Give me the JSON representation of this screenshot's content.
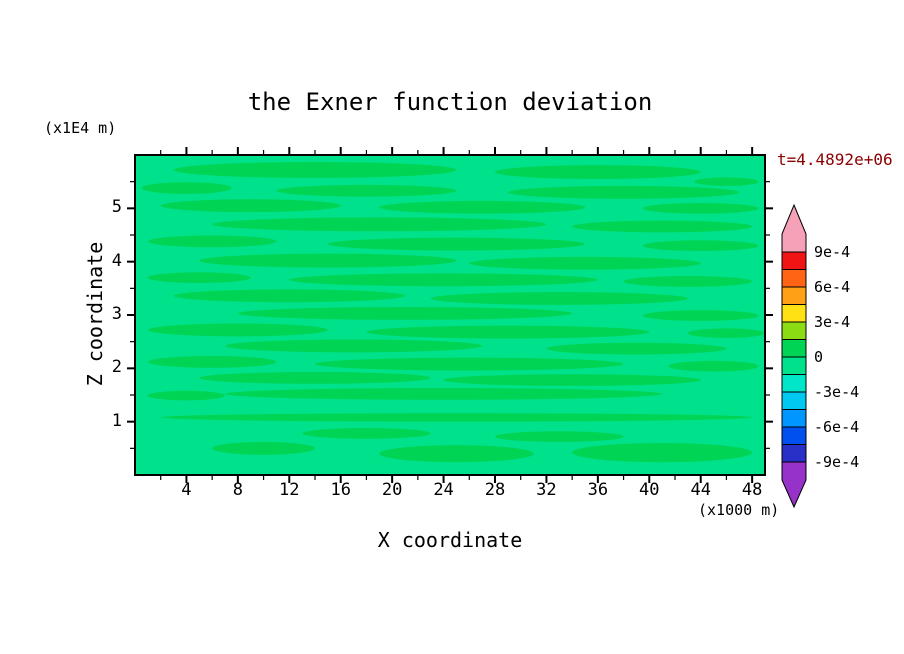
{
  "chart_data": {
    "type": "heatmap",
    "title": "the Exner function deviation",
    "annotation": "t=4.4892e+06",
    "annotation_color": "#8b0000",
    "xlabel": "X coordinate",
    "xunit": "(x1000 m)",
    "ylabel": "Z coordinate",
    "yunit": "(x1E4 m)",
    "xlim": [
      0,
      49
    ],
    "ylim": [
      0,
      6
    ],
    "xticks_major": [
      4,
      8,
      12,
      16,
      20,
      24,
      28,
      32,
      36,
      40,
      44,
      48
    ],
    "xticks_minor": [
      2,
      6,
      10,
      14,
      18,
      22,
      26,
      30,
      34,
      38,
      42,
      46
    ],
    "yticks_major": [
      1,
      2,
      3,
      4,
      5
    ],
    "yticks_minor": [
      0.5,
      1.5,
      2.5,
      3.5,
      4.5,
      5.5
    ],
    "frame_color": "#000000",
    "colorbar": {
      "labels": [
        "9e-4",
        "6e-4",
        "3e-4",
        "0",
        "-3e-4",
        "-6e-4",
        "-9e-4"
      ],
      "box_colors_top_to_bottom": [
        "#f01414",
        "#ff6414",
        "#ffa114",
        "#ffe114",
        "#8cdc14",
        "#00d455",
        "#00e18b",
        "#00e6c8",
        "#00c8f0",
        "#0096ff",
        "#0050f0",
        "#2830c8"
      ],
      "above_range_color": "#f5a2b8",
      "below_range_color": "#9632c8"
    },
    "field": {
      "background_color": "#00e18b",
      "streak_color": "#00d455",
      "streaks": [
        [
          14,
          5.72,
          11,
          0.15
        ],
        [
          36,
          5.68,
          8,
          0.13
        ],
        [
          46,
          5.5,
          2.5,
          0.08
        ],
        [
          4,
          5.38,
          3.5,
          0.11
        ],
        [
          18,
          5.33,
          7,
          0.11
        ],
        [
          38,
          5.3,
          9,
          0.12
        ],
        [
          9,
          5.05,
          7,
          0.12
        ],
        [
          27,
          5.02,
          8,
          0.12
        ],
        [
          44,
          5.0,
          4.5,
          0.1
        ],
        [
          19,
          4.7,
          13,
          0.13
        ],
        [
          41,
          4.66,
          7,
          0.11
        ],
        [
          6,
          4.38,
          5,
          0.11
        ],
        [
          25,
          4.33,
          10,
          0.12
        ],
        [
          44,
          4.3,
          4.5,
          0.1
        ],
        [
          15,
          4.02,
          10,
          0.13
        ],
        [
          35,
          3.97,
          9,
          0.12
        ],
        [
          5,
          3.7,
          4,
          0.1
        ],
        [
          24,
          3.66,
          12,
          0.12
        ],
        [
          43,
          3.63,
          5,
          0.1
        ],
        [
          12,
          3.36,
          9,
          0.12
        ],
        [
          33,
          3.31,
          10,
          0.12
        ],
        [
          21,
          3.03,
          13,
          0.12
        ],
        [
          44,
          2.99,
          4.5,
          0.1
        ],
        [
          8,
          2.72,
          7,
          0.12
        ],
        [
          29,
          2.68,
          11,
          0.12
        ],
        [
          46,
          2.66,
          3,
          0.09
        ],
        [
          17,
          2.42,
          10,
          0.12
        ],
        [
          39,
          2.37,
          7,
          0.11
        ],
        [
          6,
          2.12,
          5,
          0.11
        ],
        [
          26,
          2.08,
          12,
          0.12
        ],
        [
          45,
          2.04,
          3.5,
          0.1
        ],
        [
          14,
          1.82,
          9,
          0.11
        ],
        [
          34,
          1.78,
          10,
          0.11
        ],
        [
          24,
          1.52,
          17,
          0.11
        ],
        [
          4,
          1.49,
          3,
          0.09
        ],
        [
          25,
          1.08,
          23,
          0.08
        ],
        [
          18,
          0.78,
          5,
          0.1
        ],
        [
          33,
          0.72,
          5,
          0.1
        ],
        [
          10,
          0.5,
          4,
          0.12
        ],
        [
          25,
          0.4,
          6,
          0.16
        ],
        [
          41,
          0.42,
          7,
          0.18
        ]
      ]
    }
  }
}
